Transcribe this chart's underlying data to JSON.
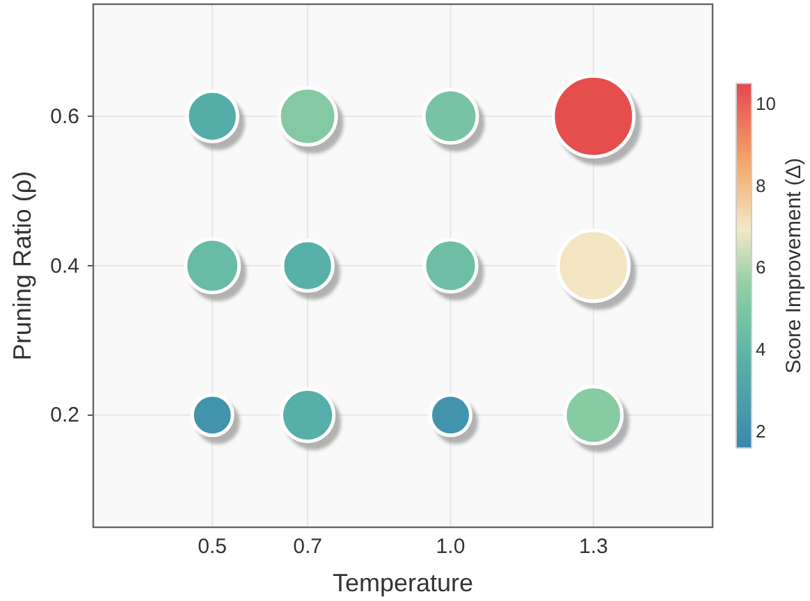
{
  "chart_data": {
    "type": "bubble",
    "xlabel": "Temperature",
    "ylabel": "Pruning Ratio (ρ)",
    "clabel": "Score Improvement (Δ)",
    "x": [
      0.5,
      0.7,
      1.0,
      1.3,
      0.5,
      0.7,
      1.0,
      1.3,
      0.5,
      0.7,
      1.0,
      1.3
    ],
    "values": [
      0.6,
      0.6,
      0.6,
      0.6,
      0.4,
      0.4,
      0.4,
      0.4,
      0.2,
      0.2,
      0.2,
      0.2
    ],
    "cvalues": [
      3.5,
      5.2,
      4.8,
      10.4,
      4.3,
      3.7,
      4.5,
      7,
      2.2,
      3.6,
      2.2,
      5.3
    ],
    "sizes": [
      0.39,
      0.5,
      0.44,
      1,
      0.44,
      0.39,
      0.42,
      0.77,
      0.25,
      0.42,
      0.25,
      0.5
    ],
    "xlim": [
      0.25,
      1.55
    ],
    "xticks": [
      0.5,
      {
        "value": 0.7,
        "label": "0.7"
      },
      {
        "value": 1.0,
        "label": "1.0"
      },
      1.3
    ],
    "ylim": [
      0.05,
      0.75
    ],
    "yticks": [
      0.2,
      0.4,
      0.6
    ],
    "clim": [
      1.6,
      10.5
    ],
    "cticks": [
      2,
      4,
      6,
      8,
      10
    ],
    "grid": true,
    "marker": "circle"
  }
}
